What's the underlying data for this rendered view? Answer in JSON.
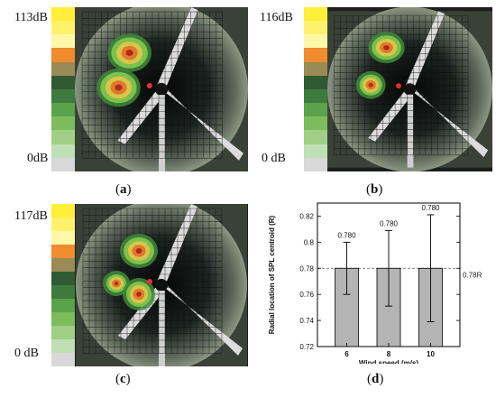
{
  "scale_colors": [
    "#ffef3a",
    "#fff26a",
    "#fff7a8",
    "#f08b2e",
    "#9a8a55",
    "#2f5b32",
    "#3e7a3d",
    "#5aa34a",
    "#7cbc5a",
    "#a0cf86",
    "#bfe0b4",
    "#d8d8d8"
  ],
  "panels": [
    {
      "max_label": "113dB",
      "min_label": "0dB",
      "caption": "a"
    },
    {
      "max_label": "116dB",
      "min_label": "0 dB",
      "caption": "b"
    },
    {
      "max_label": "117dB",
      "min_label": "0 dB",
      "caption": "c"
    }
  ],
  "chart_caption": "d",
  "chart_data": {
    "type": "bar",
    "categories": [
      "6",
      "8",
      "10"
    ],
    "values": [
      0.78,
      0.78,
      0.78
    ],
    "value_labels": [
      "0.780",
      "0.780",
      "0.780"
    ],
    "error_upper": [
      0.8,
      0.809,
      0.821
    ],
    "error_lower": [
      0.76,
      0.751,
      0.739
    ],
    "ylim": [
      0.72,
      0.83
    ],
    "yticks": [
      0.72,
      0.74,
      0.76,
      0.78,
      0.8,
      0.82
    ],
    "ytick_labels": [
      "0.72",
      "0.74",
      "0.76",
      "0.78",
      "0.8",
      "0.82"
    ],
    "xlabel": "Wind speed (m/s)",
    "ylabel": "Radial location of SPL centroid (R)",
    "reference_line": {
      "value": 0.78,
      "label": "0.78R"
    },
    "bar_color": "#b4b4b4"
  }
}
